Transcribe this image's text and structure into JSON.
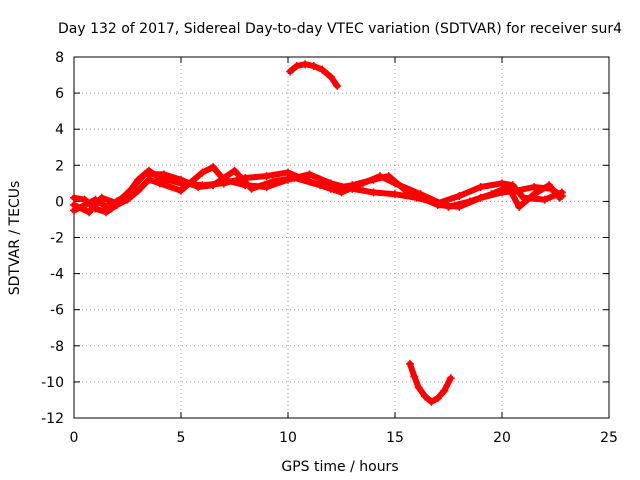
{
  "chart_data": {
    "type": "scatter",
    "title": "Day 132 of 2017, Sidereal Day-to-day VTEC variation (SDTVAR) for receiver sur4",
    "xlabel": "GPS time / hours",
    "ylabel": "SDTVAR / TECUs",
    "xlim": [
      0,
      25
    ],
    "ylim": [
      -12,
      8
    ],
    "xticks": [
      0,
      5,
      10,
      15,
      20,
      25
    ],
    "yticks": [
      -12,
      -10,
      -8,
      -6,
      -4,
      -2,
      0,
      2,
      4,
      6,
      8
    ],
    "grid": true,
    "legend": "none",
    "marker_color": "#ff0000",
    "series": [
      {
        "name": "main-band-a",
        "points": [
          [
            0,
            -0.5
          ],
          [
            0.5,
            -0.2
          ],
          [
            1,
            0.1
          ],
          [
            1.5,
            -0.3
          ],
          [
            2,
            0
          ],
          [
            2.5,
            0.4
          ],
          [
            3,
            1.2
          ],
          [
            3.5,
            1.7
          ],
          [
            4,
            1.3
          ],
          [
            5,
            1.0
          ],
          [
            6,
            0.9
          ],
          [
            7,
            1.0
          ],
          [
            8,
            1.3
          ],
          [
            9,
            1.4
          ],
          [
            10,
            1.6
          ],
          [
            11,
            1.1
          ],
          [
            12,
            0.7
          ],
          [
            13,
            0.9
          ],
          [
            14,
            1.2
          ],
          [
            14.7,
            1.4
          ],
          [
            15.5,
            0.6
          ],
          [
            16,
            0.3
          ],
          [
            17,
            -0.2
          ],
          [
            18,
            -0.3
          ],
          [
            19,
            0.2
          ],
          [
            20,
            0.5
          ],
          [
            20.7,
            0.6
          ],
          [
            21.5,
            0.8
          ],
          [
            22.3,
            0.7
          ],
          [
            22.8,
            0.3
          ]
        ]
      },
      {
        "name": "main-band-b",
        "points": [
          [
            0,
            0.2
          ],
          [
            0.5,
            0.1
          ],
          [
            1,
            -0.4
          ],
          [
            1.5,
            -0.6
          ],
          [
            2,
            -0.2
          ],
          [
            2.5,
            0.1
          ],
          [
            3,
            0.6
          ],
          [
            3.5,
            1.2
          ],
          [
            4,
            1.0
          ],
          [
            5,
            0.6
          ],
          [
            6,
            1.6
          ],
          [
            6.5,
            1.9
          ],
          [
            7,
            1.2
          ],
          [
            8,
            0.9
          ],
          [
            9,
            0.8
          ],
          [
            10,
            1.2
          ],
          [
            11,
            1.5
          ],
          [
            12,
            1.0
          ],
          [
            13,
            0.7
          ],
          [
            14,
            0.5
          ],
          [
            15,
            0.4
          ],
          [
            16,
            0.2
          ],
          [
            17,
            -0.1
          ],
          [
            18,
            0.3
          ],
          [
            19,
            0.8
          ],
          [
            20,
            1.0
          ],
          [
            20.5,
            0.9
          ],
          [
            21,
            0.2
          ],
          [
            22,
            0.1
          ],
          [
            22.8,
            0.5
          ]
        ]
      },
      {
        "name": "main-band-c",
        "points": [
          [
            0,
            -0.2
          ],
          [
            0.7,
            -0.6
          ],
          [
            1.3,
            0.2
          ],
          [
            2,
            -0.1
          ],
          [
            2.7,
            0.7
          ],
          [
            3.3,
            1.5
          ],
          [
            4.2,
            1.5
          ],
          [
            5,
            1.2
          ],
          [
            5.8,
            0.8
          ],
          [
            6.5,
            0.9
          ],
          [
            7.5,
            1.7
          ],
          [
            8.3,
            0.7
          ],
          [
            9.3,
            1.1
          ],
          [
            10.3,
            1.3
          ],
          [
            11.5,
            0.9
          ],
          [
            12.5,
            0.5
          ],
          [
            13.5,
            1.0
          ],
          [
            14.3,
            1.4
          ],
          [
            15,
            1.0
          ],
          [
            16.2,
            0.4
          ],
          [
            17.5,
            -0.3
          ],
          [
            18.5,
            0.0
          ],
          [
            19.5,
            0.4
          ],
          [
            20.3,
            0.8
          ],
          [
            20.8,
            -0.3
          ],
          [
            21.5,
            0.4
          ],
          [
            22.2,
            0.9
          ],
          [
            22.7,
            0.2
          ]
        ]
      },
      {
        "name": "upper-arc",
        "points": [
          [
            10.1,
            7.2
          ],
          [
            10.4,
            7.5
          ],
          [
            10.8,
            7.6
          ],
          [
            11.2,
            7.5
          ],
          [
            11.6,
            7.3
          ],
          [
            12.0,
            6.9
          ],
          [
            12.3,
            6.4
          ]
        ]
      },
      {
        "name": "lower-arc",
        "points": [
          [
            15.7,
            -9.0
          ],
          [
            15.9,
            -9.7
          ],
          [
            16.1,
            -10.3
          ],
          [
            16.4,
            -10.8
          ],
          [
            16.7,
            -11.1
          ],
          [
            17.0,
            -10.9
          ],
          [
            17.3,
            -10.5
          ],
          [
            17.6,
            -9.8
          ]
        ]
      }
    ]
  }
}
